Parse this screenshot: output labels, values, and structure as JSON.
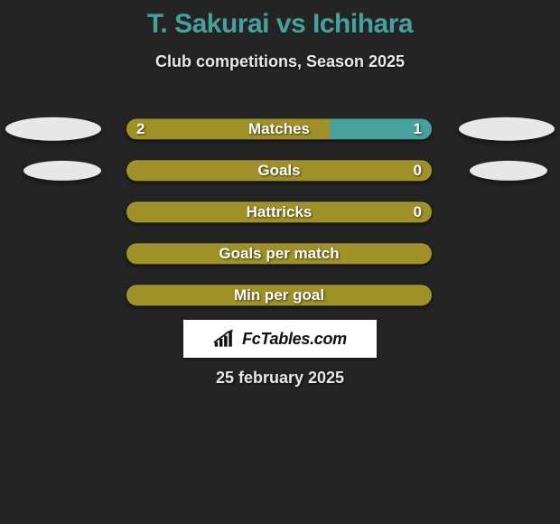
{
  "meta": {
    "background_color": "#242424",
    "accent_title_color": "#46a09b",
    "text_color": "#e8e8e8"
  },
  "title": "T. Sakurai vs Ichihara",
  "subtitle": "Club competitions, Season 2025",
  "date": "25 february 2025",
  "brand": {
    "label": "FcTables.com"
  },
  "palette": {
    "left_color": "#a09028",
    "right_color": "#46a09b",
    "empty_color": "#a09028"
  },
  "rows": [
    {
      "id": "matches",
      "label": "Matches",
      "left_value": "2",
      "right_value": "1",
      "left_share": 0.667,
      "right_share": 0.333,
      "left_color": "#a09028",
      "right_color": "#46a09b",
      "show_left_icon": true,
      "show_right_icon": true,
      "icon_style": "large"
    },
    {
      "id": "goals",
      "label": "Goals",
      "left_value": "",
      "right_value": "0",
      "left_share": 0.0,
      "right_share": 0.0,
      "left_color": "#a09028",
      "right_color": "#a09028",
      "show_left_icon": true,
      "show_right_icon": true,
      "icon_style": "small"
    },
    {
      "id": "hattricks",
      "label": "Hattricks",
      "left_value": "",
      "right_value": "0",
      "left_share": 0.0,
      "right_share": 0.0,
      "left_color": "#a09028",
      "right_color": "#a09028",
      "show_left_icon": false,
      "show_right_icon": false,
      "icon_style": "none"
    },
    {
      "id": "gpm",
      "label": "Goals per match",
      "left_value": "",
      "right_value": "",
      "left_share": 0.0,
      "right_share": 0.0,
      "left_color": "#a09028",
      "right_color": "#a09028",
      "show_left_icon": false,
      "show_right_icon": false,
      "icon_style": "none"
    },
    {
      "id": "mpg",
      "label": "Min per goal",
      "left_value": "",
      "right_value": "",
      "left_share": 0.0,
      "right_share": 0.0,
      "left_color": "#a09028",
      "right_color": "#a09028",
      "show_left_icon": false,
      "show_right_icon": false,
      "icon_style": "none"
    }
  ]
}
